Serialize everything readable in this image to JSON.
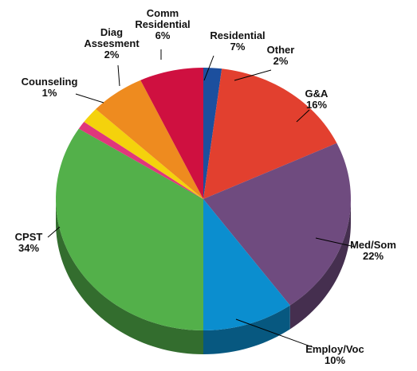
{
  "chart_data": {
    "type": "pie3d",
    "categories": [
      "Other",
      "G&A",
      "Med/Som",
      "Employ/Voc",
      "CPST",
      "Counseling",
      "Diag Assesment",
      "Comm Residential",
      "Residential"
    ],
    "values": [
      2,
      16,
      22,
      10,
      34,
      1,
      2,
      6,
      7
    ],
    "value_labels": [
      "2%",
      "16%",
      "22%",
      "10%",
      "34%",
      "1%",
      "2%",
      "6%",
      "7%"
    ],
    "colors": [
      "#1c4f9e",
      "#e2402f",
      "#6f4b7f",
      "#0b8ecf",
      "#53b04a",
      "#e0377c",
      "#f4d20c",
      "#ee8b1f",
      "#cf1040"
    ]
  }
}
